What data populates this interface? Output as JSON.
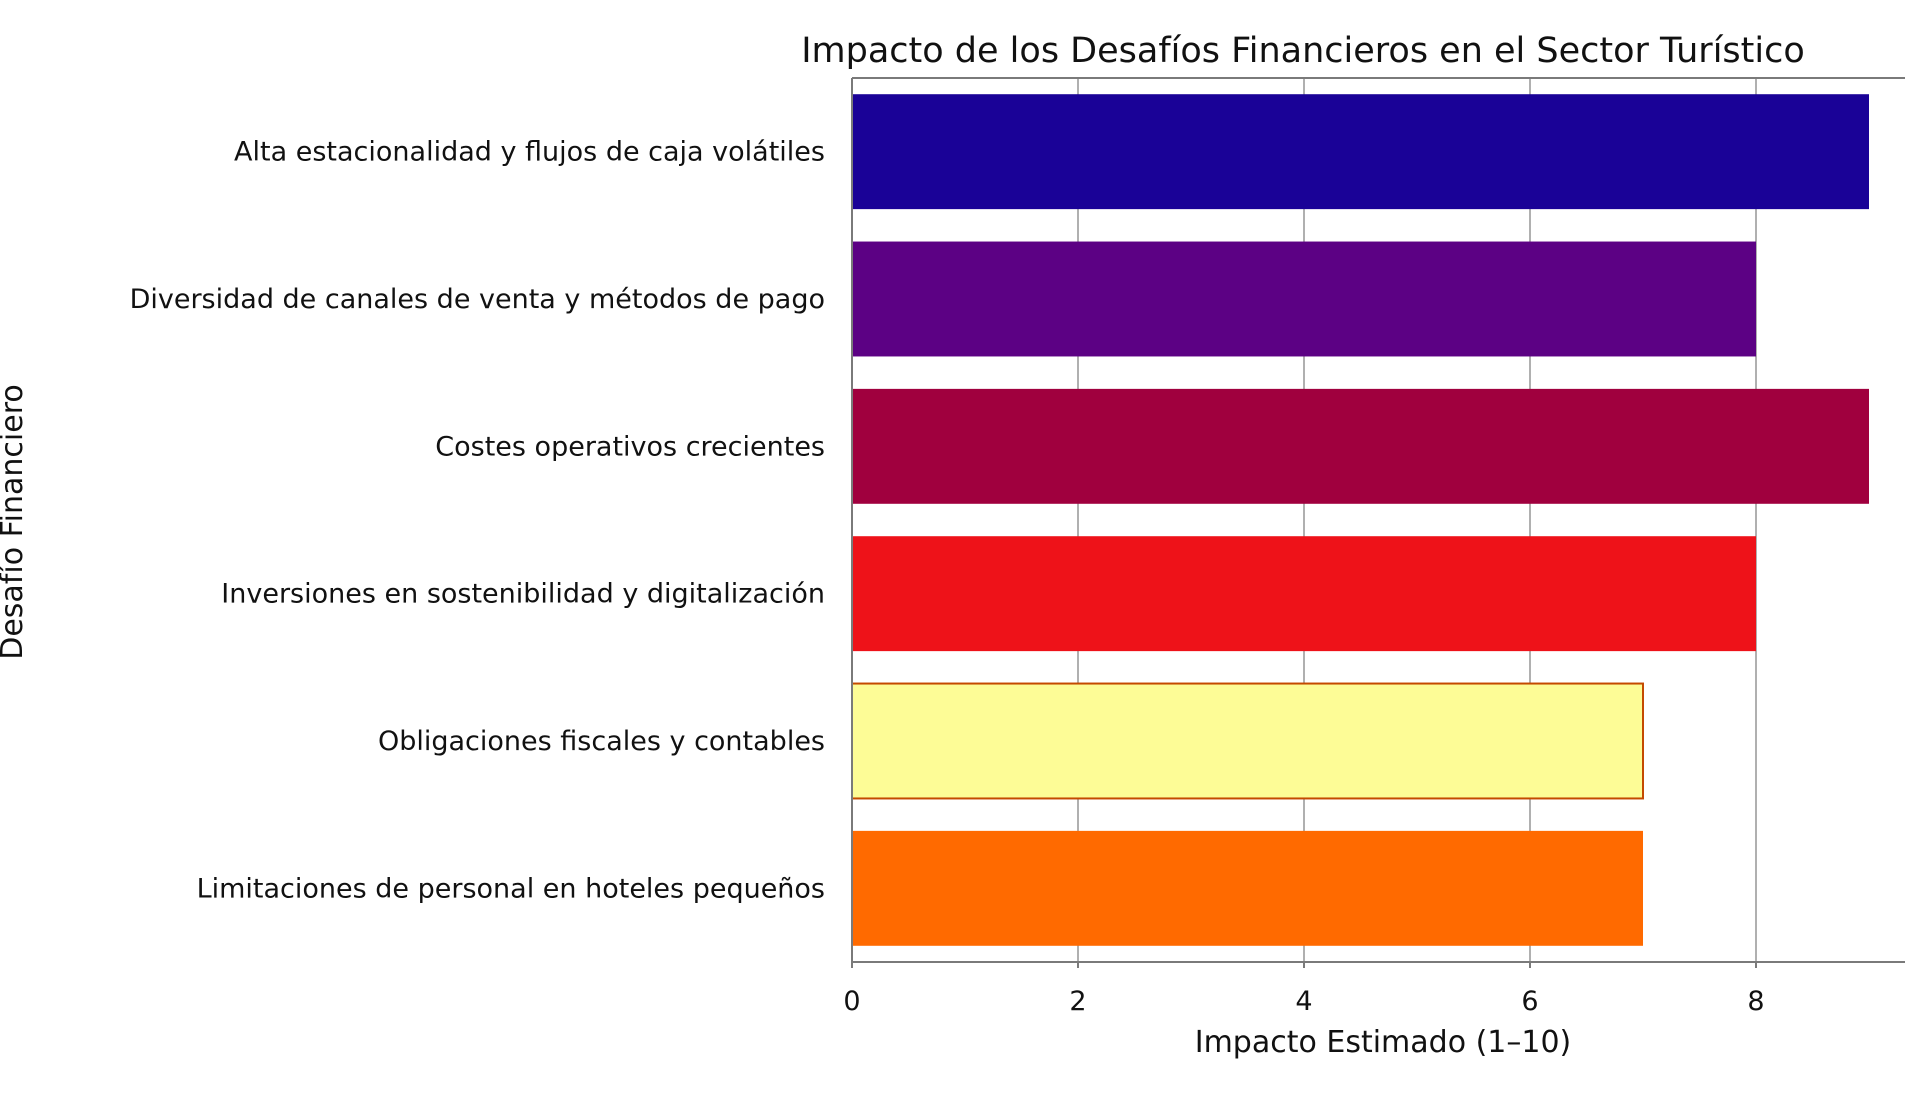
{
  "chart_data": {
    "type": "bar",
    "orientation": "horizontal",
    "title": "Impacto de los Desafíos Financieros en el Sector Turístico",
    "xlabel": "Impacto Estimado (1–10)",
    "ylabel": "Desafío Financiero",
    "xlim": [
      0,
      10
    ],
    "xticks": [
      "0",
      "2",
      "4",
      "6",
      "8"
    ],
    "grid": true,
    "legend": "none",
    "categories": [
      "Alta estacionalidad y flujos de caja volátiles",
      "Diversidad de canales de venta y métodos de pago",
      "Costes operativos crecientes",
      "Inversiones en sostenibilidad y digitalización",
      "Obligaciones fiscales y contables",
      "Limitaciones de personal en hoteles pequeños"
    ],
    "values": [
      9,
      8,
      9,
      8,
      7,
      7
    ],
    "colors": [
      "#1a0297",
      "#5c0184",
      "#a0003e",
      "#ee1219",
      "#fdfc96",
      "#ff6a00"
    ]
  }
}
